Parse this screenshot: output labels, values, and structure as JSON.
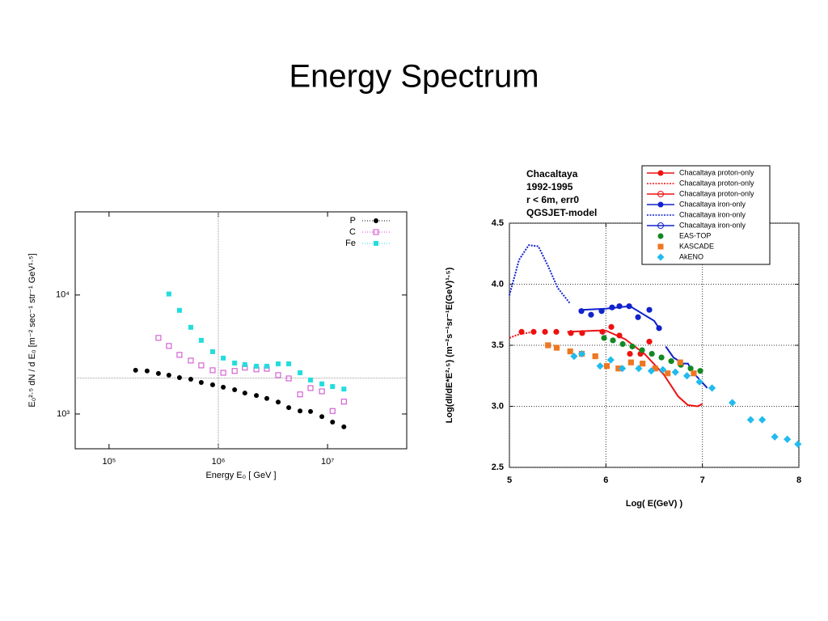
{
  "slide_title": "Energy Spectrum",
  "chart_data": [
    {
      "type": "scatter",
      "xlabel": "Energy E₀ [ GeV ]",
      "ylabel": "E₀²·⁵ dN / d E₀ [m⁻² sec⁻¹ str⁻¹ GeV¹·⁵]",
      "xscale": "log",
      "yscale": "log",
      "xlim": [
        49000,
        53000000
      ],
      "ylim": [
        510,
        50000
      ],
      "xticks": [
        {
          "value": 100000,
          "label": "10⁵"
        },
        {
          "value": 1000000,
          "label": "10⁶"
        },
        {
          "value": 10000000,
          "label": "10⁷"
        }
      ],
      "yticks": [
        {
          "value": 1000,
          "label": "10³"
        },
        {
          "value": 10000,
          "label": "10⁴"
        }
      ],
      "grid": false,
      "reference_lines": {
        "x": [
          1000000
        ],
        "y": [
          2000
        ]
      },
      "legend": "upper right",
      "series": [
        {
          "name": "P",
          "color": "#000000",
          "marker": "circle",
          "line": "none",
          "x": [
            175000,
            223000,
            283000,
            353000,
            441000,
            560000,
            698000,
            887000,
            1110000,
            1410000,
            1750000,
            2230000,
            2780000,
            3530000,
            4410000,
            5600000,
            6980000,
            8870000,
            11100000,
            14100000
          ],
          "values": [
            2330,
            2300,
            2190,
            2120,
            2020,
            1960,
            1840,
            1760,
            1680,
            1600,
            1500,
            1430,
            1350,
            1260,
            1130,
            1060,
            1050,
            950,
            855,
            780
          ]
        },
        {
          "name": "C",
          "color": "#cc44cc",
          "marker": "open-square",
          "line": "none",
          "x": [
            283000,
            353000,
            441000,
            560000,
            698000,
            887000,
            1110000,
            1410000,
            1750000,
            2230000,
            2780000,
            3530000,
            4410000,
            5600000,
            6980000,
            8870000,
            11100000,
            14100000
          ],
          "values": [
            4360,
            3730,
            3140,
            2810,
            2560,
            2330,
            2220,
            2300,
            2450,
            2370,
            2400,
            2120,
            1990,
            1460,
            1650,
            1550,
            1060,
            1270
          ]
        },
        {
          "name": "Fe",
          "color": "#22dddd",
          "marker": "square",
          "line": "none",
          "x": [
            353000,
            441000,
            560000,
            698000,
            887000,
            1110000,
            1410000,
            1750000,
            2230000,
            2780000,
            3530000,
            4410000,
            5600000,
            6980000,
            8870000,
            11100000,
            14100000
          ],
          "values": [
            10200,
            7430,
            5350,
            4160,
            3340,
            2950,
            2680,
            2600,
            2520,
            2520,
            2640,
            2640,
            2220,
            1930,
            1790,
            1700,
            1620
          ]
        }
      ]
    },
    {
      "type": "scatter",
      "xlabel": "Log( E(GeV) )",
      "ylabel": "Log(dI/dE*E²·⁵) (m⁻²s⁻¹sr⁻¹E(GeV)¹·⁵)",
      "xscale": "linear",
      "yscale": "linear",
      "xlim": [
        5,
        8
      ],
      "ylim": [
        2.5,
        4.5
      ],
      "xticks": [
        5,
        6,
        7,
        8
      ],
      "yticks": [
        2.5,
        {
          "value": 3,
          "label": "3.0"
        },
        3.5,
        {
          "value": 4,
          "label": "4.0"
        },
        4.5
      ],
      "grid": true,
      "legend": "upper right",
      "annotations": [
        {
          "text": "Chacaltaya",
          "color": "#000000"
        },
        {
          "text": "1992-1995",
          "color": "#000000"
        },
        {
          "text": "r < 6m, err0",
          "color": "#000000"
        },
        {
          "text": "QGSJET-model",
          "color": "#ee1111"
        }
      ],
      "series": [
        {
          "name": "Chacaltaya proton-only",
          "color": "#ee1111",
          "marker": "circle",
          "line": "solid-legend",
          "x": [
            5.126,
            5.251,
            5.369,
            5.486,
            5.637,
            5.754,
            5.964,
            6.056,
            6.14,
            6.249,
            6.358,
            6.45
          ],
          "values": [
            3.61,
            3.61,
            3.61,
            3.61,
            3.6,
            3.6,
            3.61,
            3.65,
            3.58,
            3.43,
            3.43,
            3.53
          ]
        },
        {
          "name": "Chacaltaya proton-only",
          "color": "#ee1111",
          "marker": "none",
          "line": "dotted",
          "x": [
            5.0,
            5.1,
            5.25
          ],
          "values": [
            3.56,
            3.59,
            3.61
          ]
        },
        {
          "name": "Chacaltaya proton-only",
          "color": "#ee1111",
          "marker": "open-circle-legend",
          "line": "solid",
          "x": [
            5.6,
            5.9,
            6.0,
            6.2,
            6.4,
            6.6,
            6.75,
            6.85,
            6.95,
            7.0
          ],
          "values": [
            3.61,
            3.62,
            3.62,
            3.55,
            3.43,
            3.26,
            3.08,
            3.01,
            3.0,
            3.02
          ]
        },
        {
          "name": "Chacaltaya iron-only",
          "color": "#1122cc",
          "marker": "circle",
          "line": "solid-legend",
          "x": [
            5.746,
            5.846,
            5.956,
            6.064,
            6.14,
            6.241,
            6.333,
            6.45,
            6.551
          ],
          "values": [
            3.78,
            3.75,
            3.78,
            3.81,
            3.82,
            3.82,
            3.73,
            3.79,
            3.64
          ]
        },
        {
          "name": "Chacaltaya iron-only",
          "color": "#1122cc",
          "marker": "none",
          "line": "dotted",
          "x": [
            5.0,
            5.1,
            5.2,
            5.3,
            5.4,
            5.5,
            5.63
          ],
          "values": [
            3.91,
            4.2,
            4.32,
            4.31,
            4.15,
            3.97,
            3.84
          ]
        },
        {
          "name": "Chacaltaya iron-only",
          "color": "#1122cc",
          "marker": "open-circle-legend",
          "line": "solid",
          "x": [
            5.75,
            6.0,
            6.25,
            6.5,
            6.55,
            null,
            6.62,
            6.7,
            6.8,
            6.85,
            6.9,
            7.05
          ],
          "values": [
            3.79,
            3.8,
            3.82,
            3.7,
            3.64,
            null,
            3.49,
            3.4,
            3.35,
            3.35,
            3.28,
            3.15
          ]
        },
        {
          "name": "EAS-TOP",
          "color": "#118822",
          "marker": "circle",
          "line": "none",
          "x": [
            5.981,
            6.073,
            6.174,
            6.274,
            6.375,
            6.476,
            6.576,
            6.677,
            6.777,
            6.878,
            6.978
          ],
          "values": [
            3.56,
            3.54,
            3.51,
            3.49,
            3.46,
            3.43,
            3.4,
            3.37,
            3.34,
            3.31,
            3.29
          ]
        },
        {
          "name": "KASCADE",
          "color": "#ee7722",
          "marker": "square",
          "line": "none",
          "x": [
            5.4,
            5.49,
            5.63,
            5.75,
            5.89,
            6.01,
            6.13,
            6.26,
            6.38,
            6.51,
            6.64,
            6.77,
            6.91
          ],
          "values": [
            3.5,
            3.48,
            3.45,
            3.43,
            3.41,
            3.33,
            3.31,
            3.36,
            3.35,
            3.31,
            3.27,
            3.36,
            3.27
          ]
        },
        {
          "name": "AkENO",
          "color": "#22bbee",
          "marker": "diamond",
          "line": "none",
          "x": [
            5.67,
            5.75,
            5.94,
            6.05,
            6.17,
            6.34,
            6.47,
            6.59,
            6.72,
            6.84,
            6.97,
            7.1,
            7.31,
            7.5,
            7.62,
            7.75,
            7.88,
            7.99
          ],
          "values": [
            3.41,
            3.43,
            3.33,
            3.38,
            3.31,
            3.31,
            3.29,
            3.3,
            3.28,
            3.25,
            3.2,
            3.15,
            3.03,
            2.89,
            2.89,
            2.75,
            2.73,
            2.69
          ]
        }
      ]
    }
  ]
}
